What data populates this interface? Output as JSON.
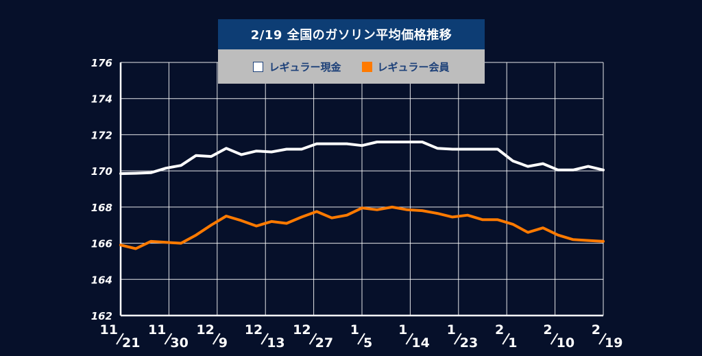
{
  "chart_data": {
    "type": "line",
    "title": "2/19 全国のガソリン平均価格推移",
    "ylim": [
      162,
      176
    ],
    "y_ticks": [
      "162",
      "164",
      "166",
      "168",
      "170",
      "172",
      "174",
      "176"
    ],
    "x_tick_labels": [
      {
        "top": "11",
        "bottom": "21"
      },
      {
        "top": "11",
        "bottom": "30"
      },
      {
        "top": "12",
        "bottom": "9"
      },
      {
        "top": "12",
        "bottom": "13"
      },
      {
        "top": "12",
        "bottom": "27"
      },
      {
        "top": "1",
        "bottom": "5"
      },
      {
        "top": "1",
        "bottom": "14"
      },
      {
        "top": "1",
        "bottom": "23"
      },
      {
        "top": "2",
        "bottom": "1"
      },
      {
        "top": "2",
        "bottom": "10"
      },
      {
        "top": "2",
        "bottom": "19"
      }
    ],
    "grid": true,
    "series": [
      {
        "name": "レギュラー現金",
        "color": "#ffffff",
        "values": [
          169.85,
          169.87,
          169.9,
          170.15,
          170.3,
          170.85,
          170.8,
          171.25,
          170.9,
          171.1,
          171.05,
          171.2,
          171.2,
          171.5,
          171.5,
          171.5,
          171.4,
          171.6,
          171.6,
          171.6,
          171.6,
          171.25,
          171.2,
          171.2,
          171.2,
          171.2,
          170.55,
          170.25,
          170.4,
          170.05,
          170.05,
          170.25,
          170.05
        ]
      },
      {
        "name": "レギュラー会員",
        "color": "#ff7a00",
        "values": [
          165.9,
          165.7,
          166.1,
          166.05,
          166.0,
          166.45,
          167.0,
          167.5,
          167.25,
          166.95,
          167.2,
          167.1,
          167.45,
          167.75,
          167.4,
          167.55,
          167.95,
          167.85,
          168.0,
          167.85,
          167.8,
          167.65,
          167.45,
          167.55,
          167.3,
          167.3,
          167.05,
          166.6,
          166.85,
          166.45,
          166.2,
          166.15,
          166.1
        ]
      }
    ]
  }
}
